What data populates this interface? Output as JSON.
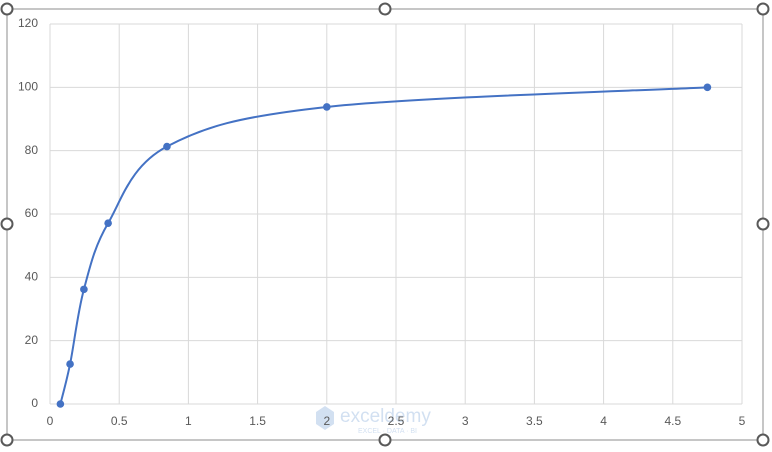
{
  "chart_data": {
    "type": "scatter",
    "smooth": true,
    "grid": true,
    "x": [
      0.075,
      0.145,
      0.245,
      0.42,
      0.845,
      2.0,
      4.75
    ],
    "series": [
      {
        "color": "#4472c4",
        "values": [
          0,
          12.6,
          36.2,
          57.1,
          81.3,
          93.8,
          100
        ]
      }
    ],
    "xlim": [
      0,
      5
    ],
    "xticks": [
      0,
      0.5,
      1,
      1.5,
      2,
      2.5,
      3,
      3.5,
      4,
      4.5,
      5
    ],
    "ylim": [
      0,
      120
    ],
    "yticks": [
      0,
      20,
      40,
      60,
      80,
      100,
      120
    ]
  },
  "watermark": {
    "name": "exceldemy",
    "tagline": "EXCEL · DATA · BI"
  }
}
